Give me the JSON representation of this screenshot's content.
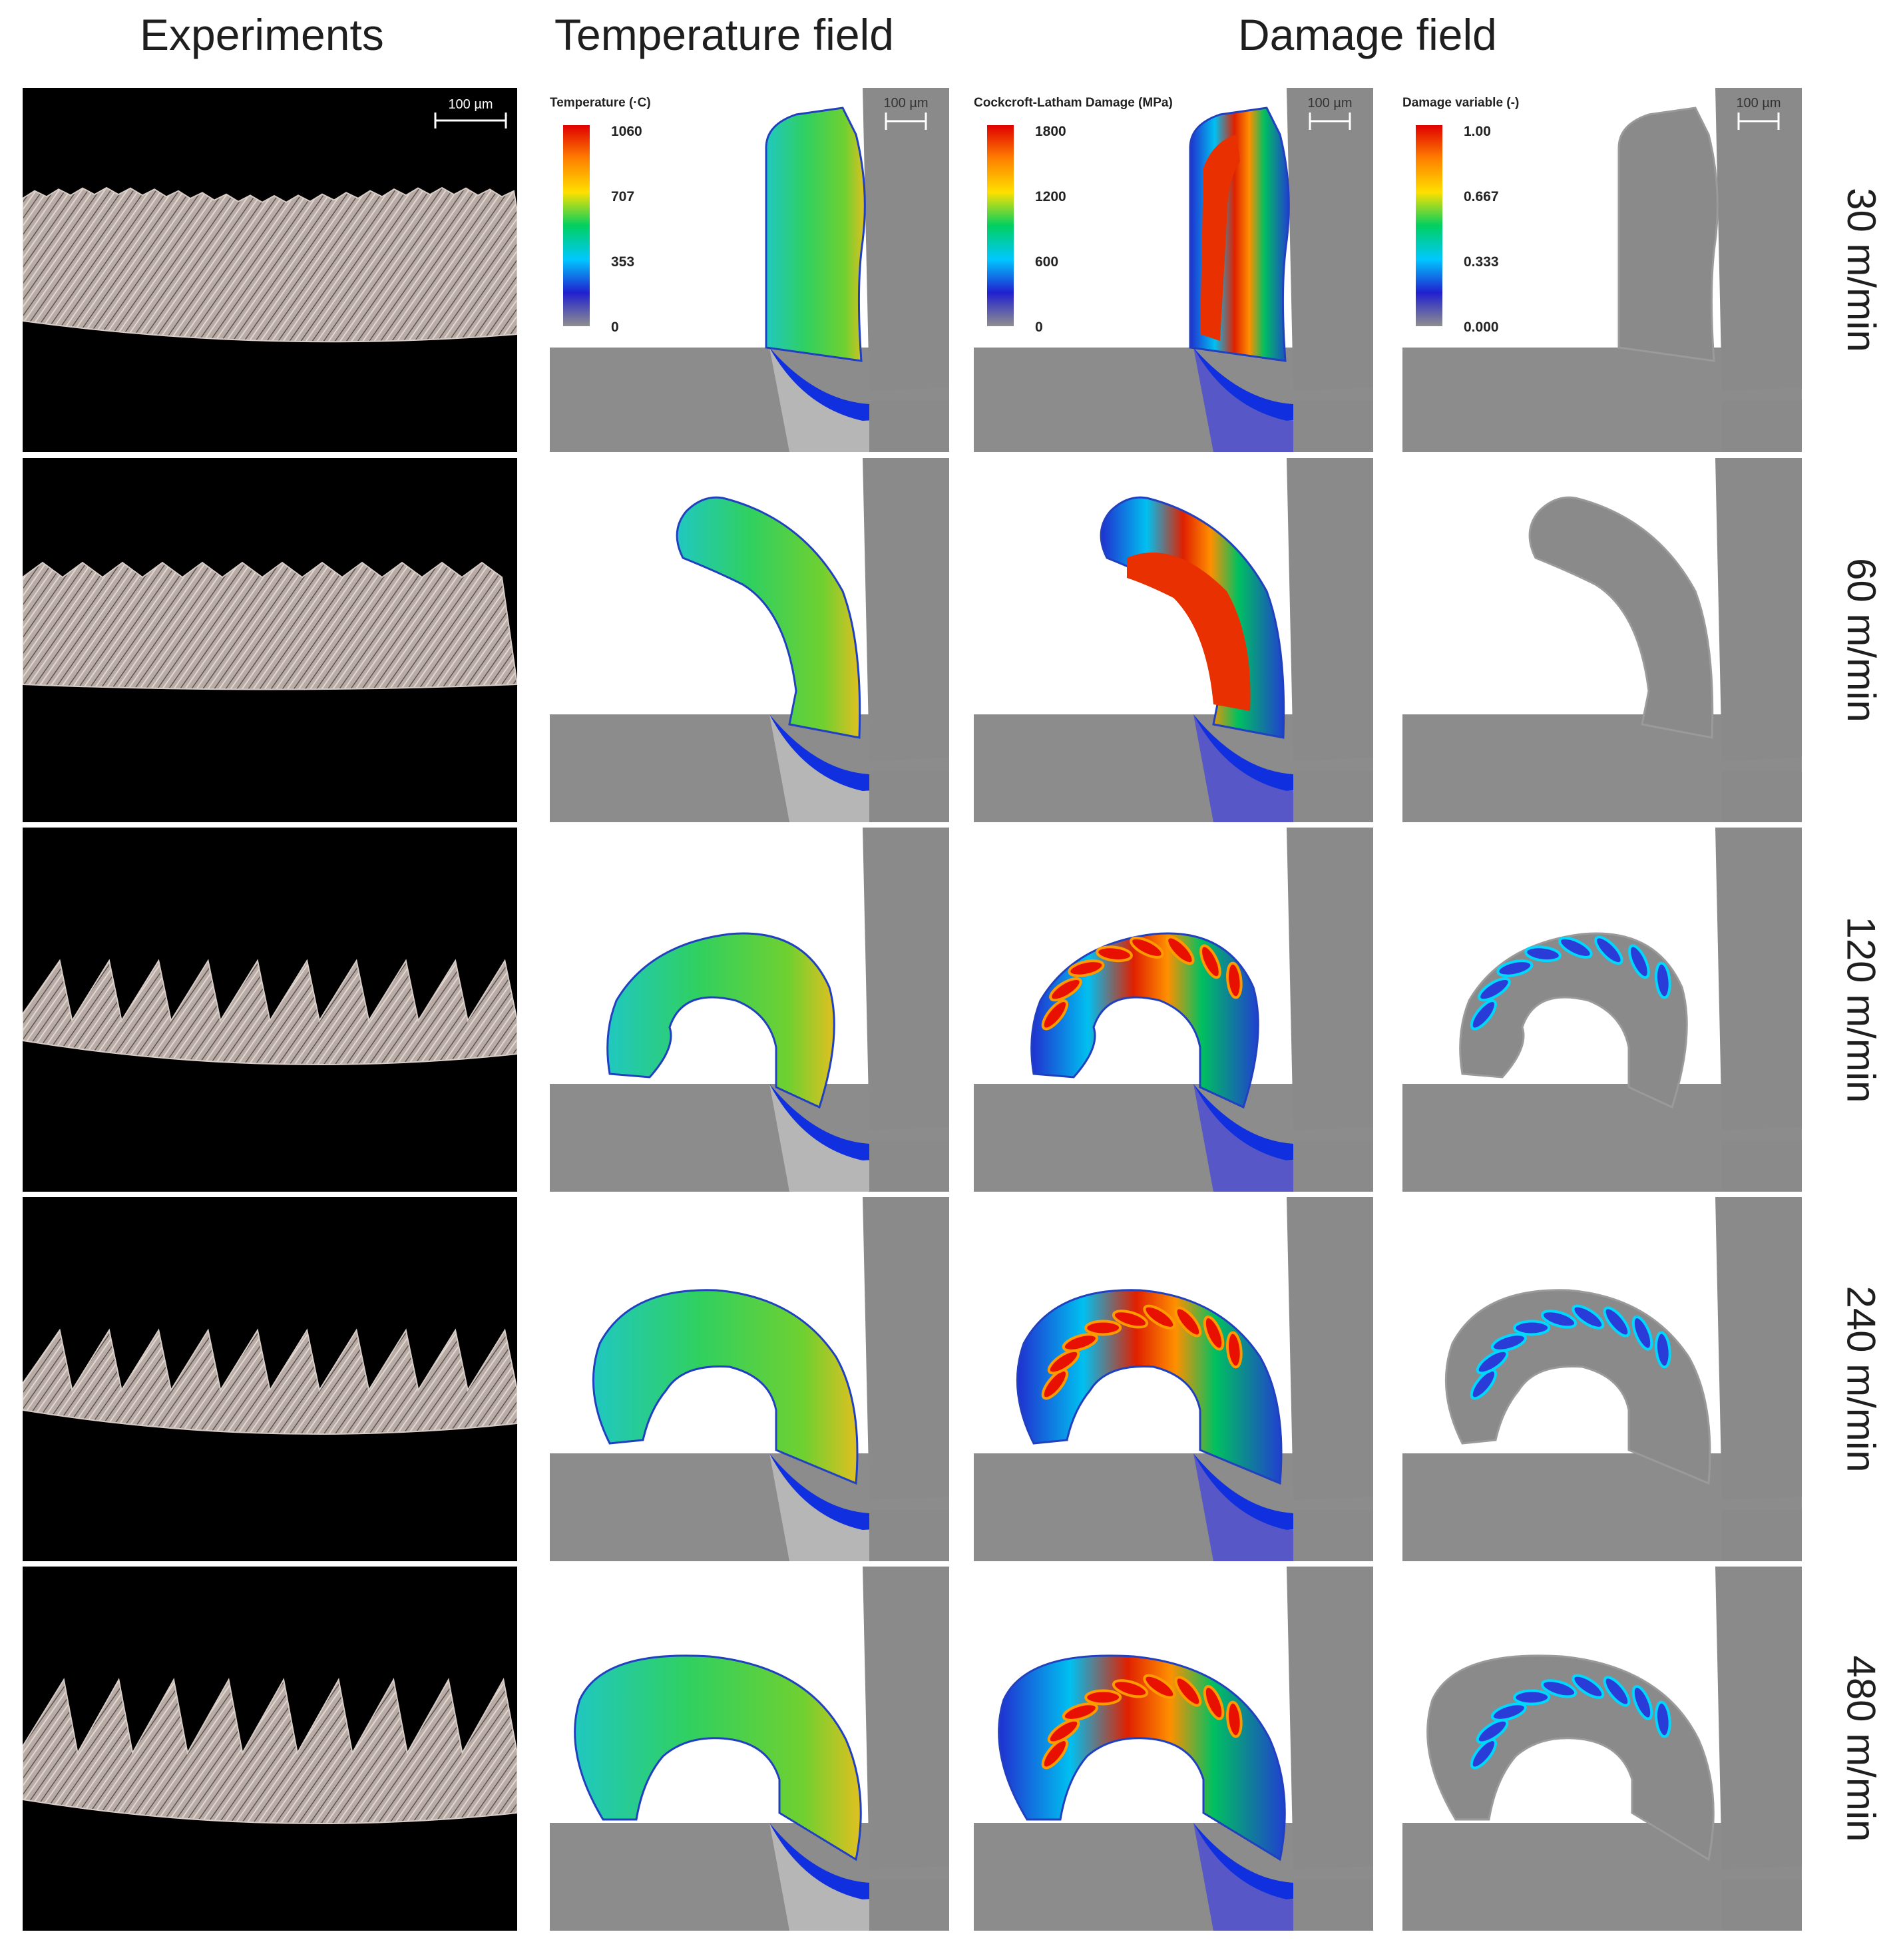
{
  "headers": {
    "experiments": "Experiments",
    "temperature": "Temperature field",
    "damage": "Damage field"
  },
  "scale_bar_label": "100 µm",
  "rows": [
    {
      "speed": "30 m/min"
    },
    {
      "speed": "60 m/min"
    },
    {
      "speed": "120 m/min"
    },
    {
      "speed": "240 m/min"
    },
    {
      "speed": "480 m/min"
    }
  ],
  "legends": {
    "temperature": {
      "title": "Temperature (·C)",
      "ticks": [
        "1060",
        "707",
        "353",
        "0"
      ]
    },
    "cockcroft": {
      "title": "Cockcroft-Latham Damage (MPa)",
      "ticks": [
        "1800",
        "1200",
        "600",
        "0"
      ]
    },
    "damage_variable": {
      "title": "Damage variable (-)",
      "ticks": [
        "1.00",
        "0.667",
        "0.333",
        "0.000"
      ]
    }
  },
  "colors": {
    "background": "#ffffff",
    "experiment_background": "#000000",
    "chip_micrograph": "#b8aaa4",
    "workpiece_gray": "#8c8c8c",
    "tool_gray": "#8a8a8a",
    "colormap": [
      "#8f8f8f",
      "#2020d0",
      "#00c8ff",
      "#00d060",
      "#ffe000",
      "#ff8000",
      "#e00000"
    ]
  }
}
